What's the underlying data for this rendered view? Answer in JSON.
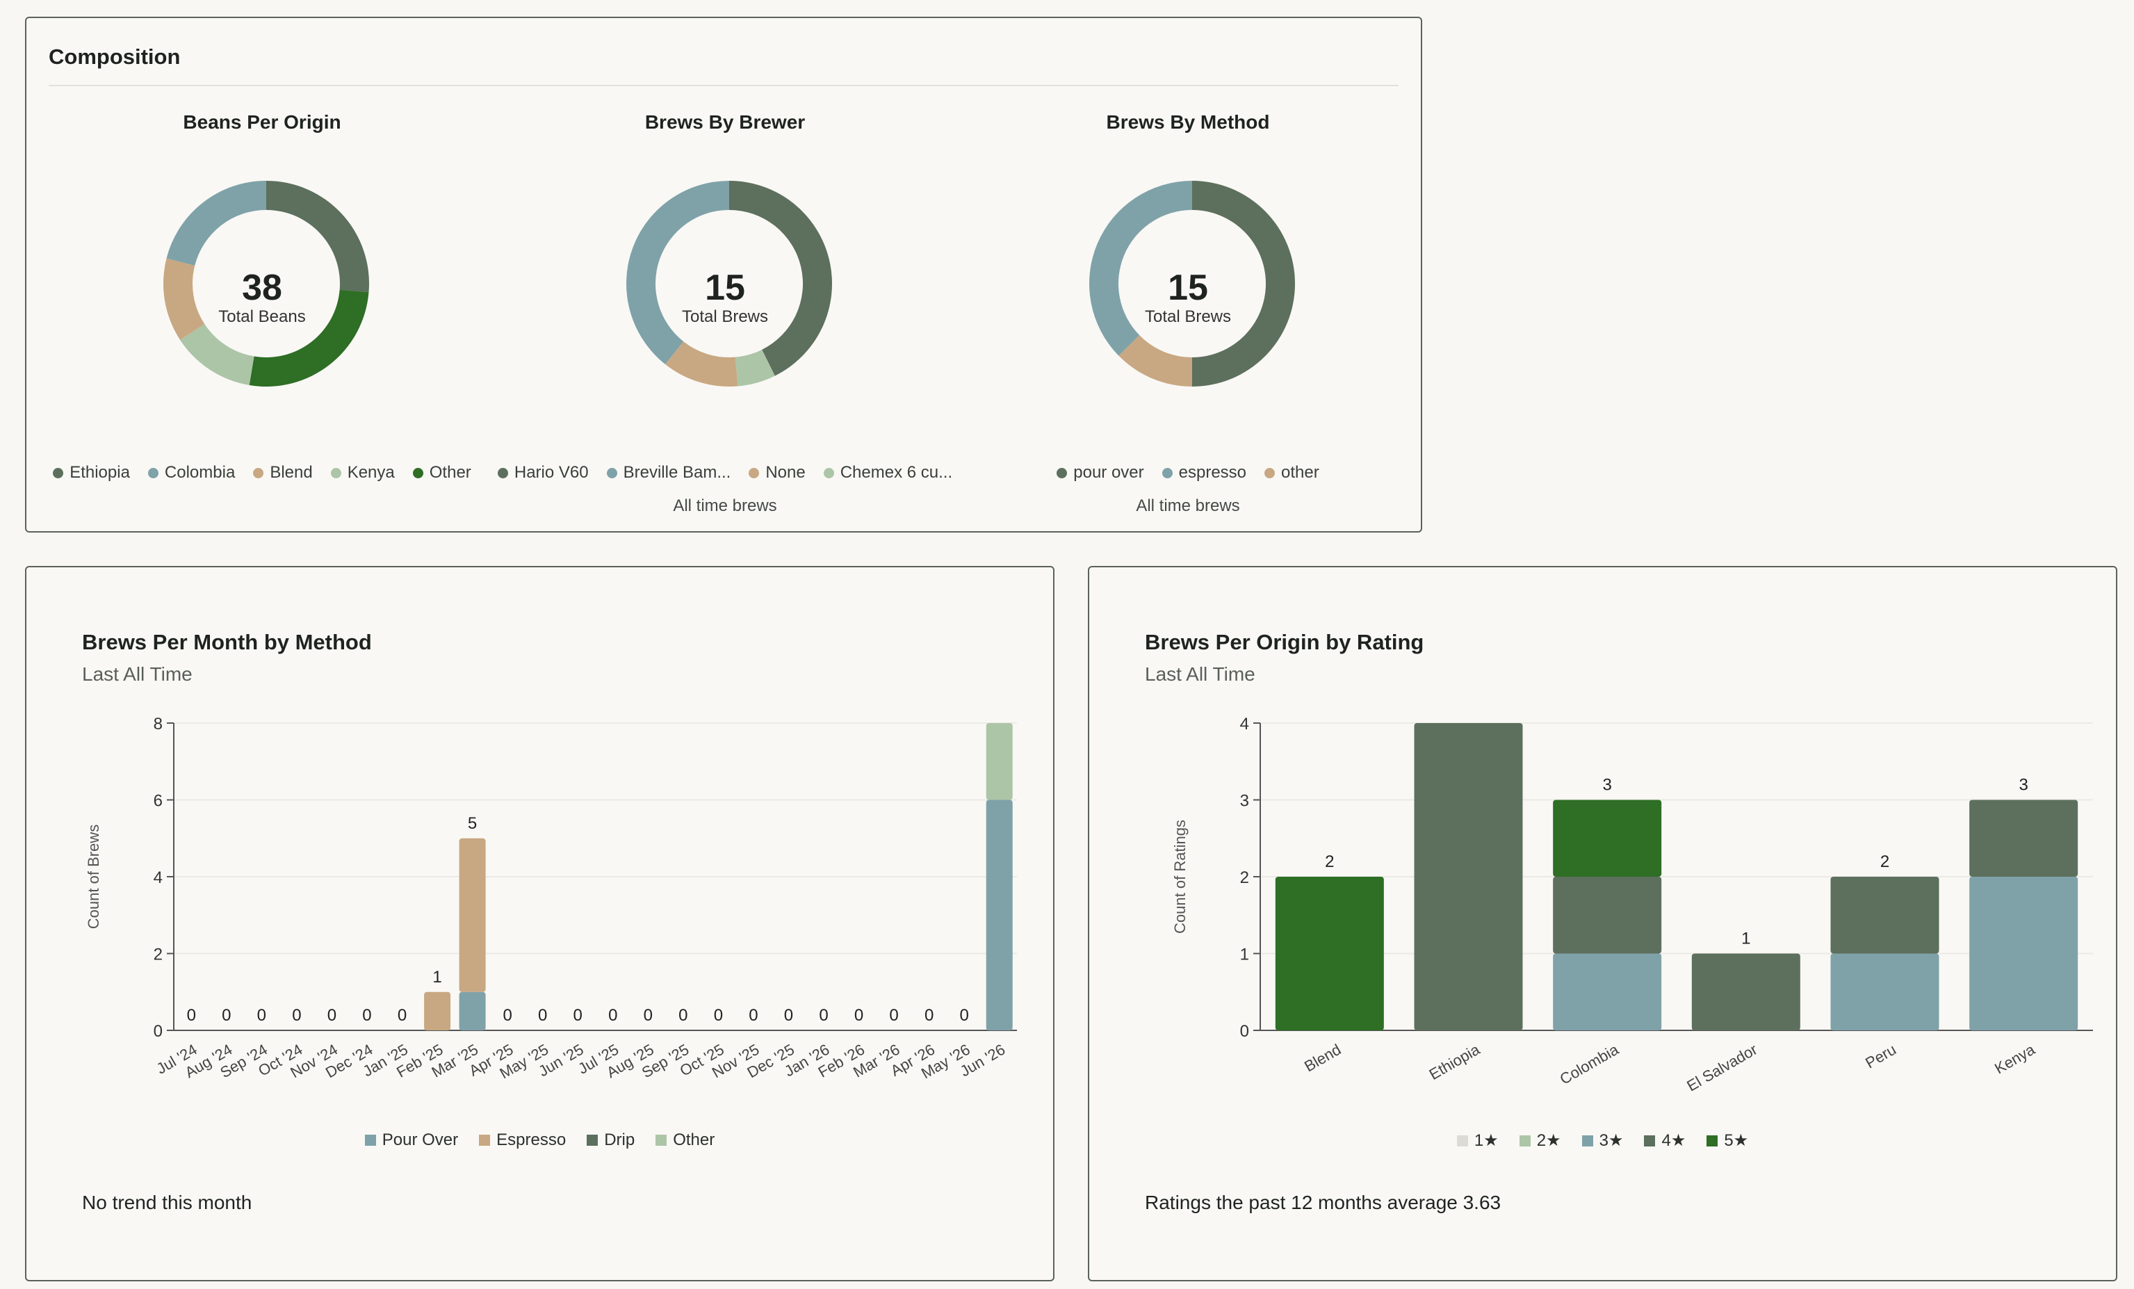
{
  "composition": {
    "title": "Composition",
    "donuts": [
      {
        "title": "Beans Per Origin",
        "total": "38",
        "total_label": "Total Beans",
        "caption": "",
        "slices": [
          {
            "label": "Ethiopia",
            "value": 10,
            "color": "#5d6f5d"
          },
          {
            "label": "Other",
            "value": 10,
            "color": "#2e6e25"
          },
          {
            "label": "Kenya",
            "value": 5,
            "color": "#adc5a7"
          },
          {
            "label": "Blend",
            "value": 5,
            "color": "#c8a882"
          },
          {
            "label": "Colombia",
            "value": 8,
            "color": "#7fa2a8"
          }
        ],
        "legend": [
          {
            "label": "Ethiopia",
            "color": "#5d6f5d"
          },
          {
            "label": "Colombia",
            "color": "#7fa2a8"
          },
          {
            "label": "Blend",
            "color": "#c8a882"
          },
          {
            "label": "Kenya",
            "color": "#adc5a7"
          },
          {
            "label": "Other",
            "color": "#2e6e25"
          }
        ]
      },
      {
        "title": "Brews By Brewer",
        "total": "15",
        "total_label": "Total Brews",
        "caption": "All time brews",
        "slices": [
          {
            "label": "Hario V60",
            "value": 6.4,
            "color": "#5d6f5d"
          },
          {
            "label": "Chemex 6 cu...",
            "value": 0.9,
            "color": "#adc5a7"
          },
          {
            "label": "None",
            "value": 1.8,
            "color": "#c8a882"
          },
          {
            "label": "Breville Bam...",
            "value": 5.9,
            "color": "#7fa2a8"
          }
        ],
        "legend": [
          {
            "label": "Hario V60",
            "color": "#5d6f5d"
          },
          {
            "label": "Breville Bam...",
            "color": "#7fa2a8"
          },
          {
            "label": "None",
            "color": "#c8a882"
          },
          {
            "label": "Chemex 6 cu...",
            "color": "#adc5a7"
          }
        ]
      },
      {
        "title": "Brews By Method",
        "total": "15",
        "total_label": "Total Brews",
        "caption": "All time brews",
        "slices": [
          {
            "label": "pour over",
            "value": 7.5,
            "color": "#5d6f5d"
          },
          {
            "label": "other",
            "value": 1.9,
            "color": "#c8a882"
          },
          {
            "label": "espresso",
            "value": 5.6,
            "color": "#7fa2a8"
          }
        ],
        "legend": [
          {
            "label": "pour over",
            "color": "#5d6f5d"
          },
          {
            "label": "espresso",
            "color": "#7fa2a8"
          },
          {
            "label": "other",
            "color": "#c8a882"
          }
        ]
      }
    ]
  },
  "brews_month": {
    "title": "Brews Per Month by Method",
    "subtitle": "Last All Time",
    "footer": "No trend this month",
    "legend": [
      {
        "label": "Pour Over",
        "color": "#7fa2a8"
      },
      {
        "label": "Espresso",
        "color": "#c8a882"
      },
      {
        "label": "Drip",
        "color": "#5d6f5d"
      },
      {
        "label": "Other",
        "color": "#adc5a7"
      }
    ]
  },
  "brews_origin": {
    "title": "Brews Per Origin by Rating",
    "subtitle": "Last All Time",
    "footer": "Ratings the past 12 months average 3.63",
    "legend": [
      {
        "label": "1★",
        "color": "#dcdcd7"
      },
      {
        "label": "2★",
        "color": "#adc5a7"
      },
      {
        "label": "3★",
        "color": "#7fa2a8"
      },
      {
        "label": "4★",
        "color": "#5d6f5d"
      },
      {
        "label": "5★",
        "color": "#2e6e25"
      }
    ]
  },
  "chart_data": [
    {
      "type": "pie",
      "title": "Beans Per Origin",
      "labels": [
        "Ethiopia",
        "Colombia",
        "Blend",
        "Kenya",
        "Other"
      ],
      "values": [
        10,
        8,
        5,
        5,
        10
      ]
    },
    {
      "type": "pie",
      "title": "Brews By Brewer",
      "labels": [
        "Hario V60",
        "Breville Bam...",
        "None",
        "Chemex 6 cu..."
      ],
      "values": [
        6.4,
        5.9,
        1.8,
        0.9
      ]
    },
    {
      "type": "pie",
      "title": "Brews By Method",
      "labels": [
        "pour over",
        "espresso",
        "other"
      ],
      "values": [
        7.5,
        5.6,
        1.9
      ]
    },
    {
      "type": "bar",
      "stacked": true,
      "title": "Brews Per Month by Method",
      "subtitle": "Last All Time",
      "ylabel": "Count of Brews",
      "ylim": [
        0,
        8
      ],
      "yticks": [
        0,
        2,
        4,
        6,
        8
      ],
      "grid": true,
      "legend_position": "bottom",
      "categories": [
        "Jul '24",
        "Aug '24",
        "Sep '24",
        "Oct '24",
        "Nov '24",
        "Dec '24",
        "Jan '25",
        "Feb '25",
        "Mar '25",
        "Apr '25",
        "May '25",
        "Jun '25",
        "Jul '25",
        "Aug '25",
        "Sep '25",
        "Oct '25",
        "Nov '25",
        "Dec '25",
        "Jan '26",
        "Feb '26",
        "Mar '26",
        "Apr '26",
        "May '26",
        "Jun '26"
      ],
      "series": [
        {
          "name": "Pour Over",
          "color": "#7fa2a8",
          "values": [
            0,
            0,
            0,
            0,
            0,
            0,
            0,
            0,
            1,
            0,
            0,
            0,
            0,
            0,
            0,
            0,
            0,
            0,
            0,
            0,
            0,
            0,
            0,
            6
          ]
        },
        {
          "name": "Espresso",
          "color": "#c8a882",
          "values": [
            0,
            0,
            0,
            0,
            0,
            0,
            0,
            1,
            4,
            0,
            0,
            0,
            0,
            0,
            0,
            0,
            0,
            0,
            0,
            0,
            0,
            0,
            0,
            0
          ]
        },
        {
          "name": "Drip",
          "color": "#5d6f5d",
          "values": [
            0,
            0,
            0,
            0,
            0,
            0,
            0,
            0,
            0,
            0,
            0,
            0,
            0,
            0,
            0,
            0,
            0,
            0,
            0,
            0,
            0,
            0,
            0,
            0
          ]
        },
        {
          "name": "Other",
          "color": "#adc5a7",
          "values": [
            0,
            0,
            0,
            0,
            0,
            0,
            0,
            0,
            0,
            0,
            0,
            0,
            0,
            0,
            0,
            0,
            0,
            0,
            0,
            0,
            0,
            0,
            0,
            2
          ]
        }
      ],
      "data_labels": [
        "0",
        "0",
        "0",
        "0",
        "0",
        "0",
        "0",
        "1",
        "5",
        "0",
        "0",
        "0",
        "0",
        "0",
        "0",
        "0",
        "0",
        "0",
        "0",
        "0",
        "0",
        "0",
        "0",
        ""
      ]
    },
    {
      "type": "bar",
      "stacked": true,
      "title": "Brews Per Origin by Rating",
      "subtitle": "Last All Time",
      "ylabel": "Count of Ratings",
      "ylim": [
        0,
        4
      ],
      "yticks": [
        0,
        1,
        2,
        3,
        4
      ],
      "grid": true,
      "legend_position": "bottom",
      "categories": [
        "Blend",
        "Ethiopia",
        "Colombia",
        "El Salvador",
        "Peru",
        "Kenya"
      ],
      "series": [
        {
          "name": "1★",
          "color": "#dcdcd7",
          "values": [
            0,
            0,
            0,
            0,
            0,
            0
          ]
        },
        {
          "name": "2★",
          "color": "#adc5a7",
          "values": [
            0,
            0,
            0,
            0,
            0,
            0
          ]
        },
        {
          "name": "3★",
          "color": "#7fa2a8",
          "values": [
            0,
            0,
            1,
            0,
            1,
            2
          ]
        },
        {
          "name": "4★",
          "color": "#5d6f5d",
          "values": [
            0,
            4,
            1,
            1,
            1,
            1
          ]
        },
        {
          "name": "5★",
          "color": "#2e6e25",
          "values": [
            2,
            0,
            1,
            0,
            0,
            0
          ]
        }
      ],
      "data_labels": [
        "2",
        "",
        "3",
        "1",
        "2",
        "3"
      ]
    }
  ]
}
